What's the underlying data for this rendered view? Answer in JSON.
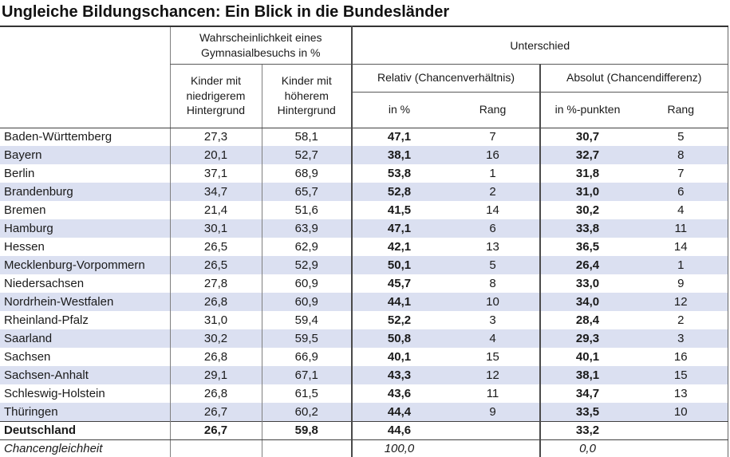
{
  "title": "Ungleiche Bildungschancen: Ein Blick in die Bundesländer",
  "chart_data": {
    "type": "table",
    "title": "Ungleiche Bildungschancen: Ein Blick in die Bundesländer",
    "headers": {
      "group_probability": "Wahrscheinlichkeit eines Gymnasialbesuchs in %",
      "group_difference": "Unterschied",
      "col_low": "Kinder mit niedrigerem Hintergrund",
      "col_high": "Kinder mit höherem Hintergrund",
      "sub_relative": "Relativ (Chancenverhältnis)",
      "sub_absolute": "Absolut (Chancendifferenz)",
      "leaf_rel_pct": "in %",
      "leaf_rel_rank": "Rang",
      "leaf_abs_pct": "in %-punkten",
      "leaf_abs_rank": "Rang"
    },
    "rows": [
      {
        "name": "Baden-Württemberg",
        "low": "27,3",
        "high": "58,1",
        "rel_pct": "47,1",
        "rel_rank": "7",
        "abs_pct": "30,7",
        "abs_rank": "5",
        "row_style": ""
      },
      {
        "name": "Bayern",
        "low": "20,1",
        "high": "52,7",
        "rel_pct": "38,1",
        "rel_rank": "16",
        "abs_pct": "32,7",
        "abs_rank": "8",
        "row_style": "stripe"
      },
      {
        "name": "Berlin",
        "low": "37,1",
        "high": "68,9",
        "rel_pct": "53,8",
        "rel_rank": "1",
        "abs_pct": "31,8",
        "abs_rank": "7",
        "row_style": ""
      },
      {
        "name": "Brandenburg",
        "low": "34,7",
        "high": "65,7",
        "rel_pct": "52,8",
        "rel_rank": "2",
        "abs_pct": "31,0",
        "abs_rank": "6",
        "row_style": "stripe"
      },
      {
        "name": "Bremen",
        "low": "21,4",
        "high": "51,6",
        "rel_pct": "41,5",
        "rel_rank": "14",
        "abs_pct": "30,2",
        "abs_rank": "4",
        "row_style": ""
      },
      {
        "name": "Hamburg",
        "low": "30,1",
        "high": "63,9",
        "rel_pct": "47,1",
        "rel_rank": "6",
        "abs_pct": "33,8",
        "abs_rank": "11",
        "row_style": "stripe"
      },
      {
        "name": "Hessen",
        "low": "26,5",
        "high": "62,9",
        "rel_pct": "42,1",
        "rel_rank": "13",
        "abs_pct": "36,5",
        "abs_rank": "14",
        "row_style": ""
      },
      {
        "name": "Mecklenburg-Vorpommern",
        "low": "26,5",
        "high": "52,9",
        "rel_pct": "50,1",
        "rel_rank": "5",
        "abs_pct": "26,4",
        "abs_rank": "1",
        "row_style": "stripe"
      },
      {
        "name": "Niedersachsen",
        "low": "27,8",
        "high": "60,9",
        "rel_pct": "45,7",
        "rel_rank": "8",
        "abs_pct": "33,0",
        "abs_rank": "9",
        "row_style": ""
      },
      {
        "name": "Nordrhein-Westfalen",
        "low": "26,8",
        "high": "60,9",
        "rel_pct": "44,1",
        "rel_rank": "10",
        "abs_pct": "34,0",
        "abs_rank": "12",
        "row_style": "stripe"
      },
      {
        "name": "Rheinland-Pfalz",
        "low": "31,0",
        "high": "59,4",
        "rel_pct": "52,2",
        "rel_rank": "3",
        "abs_pct": "28,4",
        "abs_rank": "2",
        "row_style": ""
      },
      {
        "name": "Saarland",
        "low": "30,2",
        "high": "59,5",
        "rel_pct": "50,8",
        "rel_rank": "4",
        "abs_pct": "29,3",
        "abs_rank": "3",
        "row_style": "stripe"
      },
      {
        "name": "Sachsen",
        "low": "26,8",
        "high": "66,9",
        "rel_pct": "40,1",
        "rel_rank": "15",
        "abs_pct": "40,1",
        "abs_rank": "16",
        "row_style": ""
      },
      {
        "name": "Sachsen-Anhalt",
        "low": "29,1",
        "high": "67,1",
        "rel_pct": "43,3",
        "rel_rank": "12",
        "abs_pct": "38,1",
        "abs_rank": "15",
        "row_style": "stripe"
      },
      {
        "name": "Schleswig-Holstein",
        "low": "26,8",
        "high": "61,5",
        "rel_pct": "43,6",
        "rel_rank": "11",
        "abs_pct": "34,7",
        "abs_rank": "13",
        "row_style": ""
      },
      {
        "name": "Thüringen",
        "low": "26,7",
        "high": "60,2",
        "rel_pct": "44,4",
        "rel_rank": "9",
        "abs_pct": "33,5",
        "abs_rank": "10",
        "row_style": "stripe"
      },
      {
        "name": "Deutschland",
        "low": "26,7",
        "high": "59,8",
        "rel_pct": "44,6",
        "rel_rank": "",
        "abs_pct": "33,2",
        "abs_rank": "",
        "row_style": "total"
      },
      {
        "name": "Chancengleichheit",
        "low": "",
        "high": "",
        "rel_pct": "100,0",
        "rel_rank": "",
        "abs_pct": "0,0",
        "abs_rank": "",
        "row_style": "equality"
      }
    ]
  },
  "colors": {
    "row_stripe": "#dbe0f1",
    "border_dark": "#4a4a4a",
    "border_light": "#7f7f7f",
    "text": "#1a1a1a"
  }
}
